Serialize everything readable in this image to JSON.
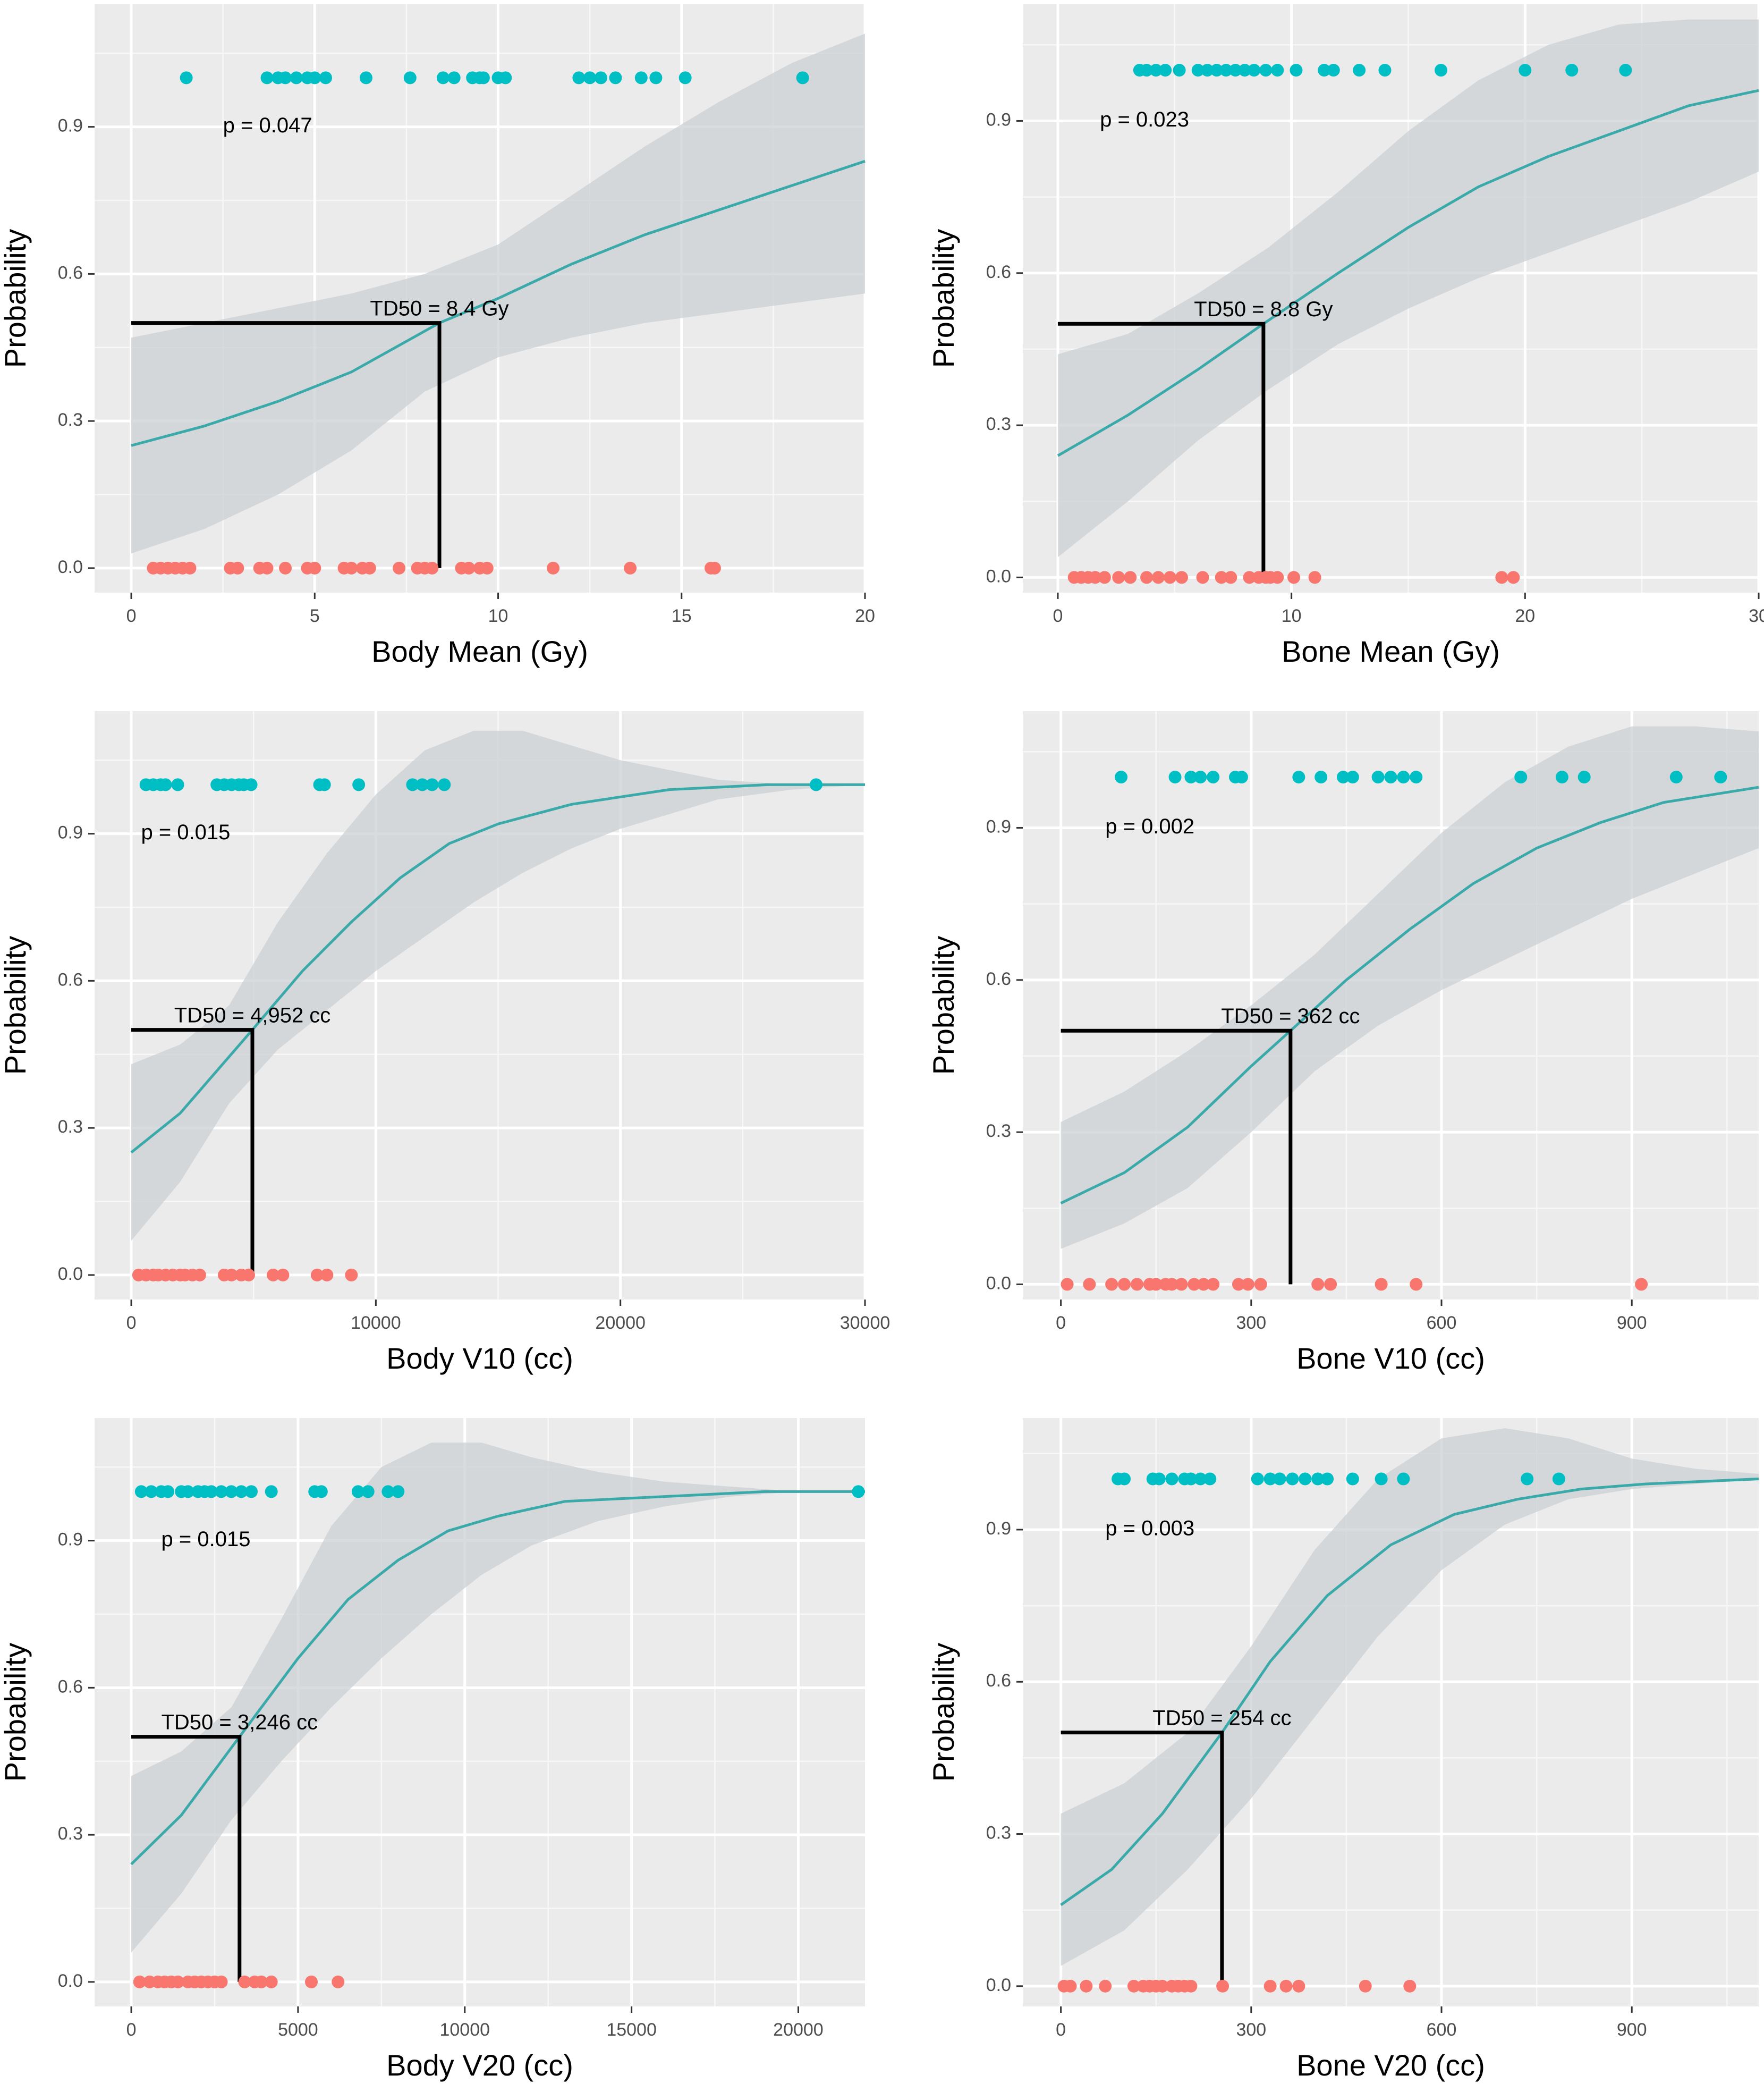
{
  "chart_data": [
    {
      "type": "scatter",
      "title": "",
      "xlabel": "Body Mean (Gy)",
      "ylabel": "Probability",
      "xlim": [
        -1,
        20
      ],
      "ylim": [
        -0.05,
        1.15
      ],
      "xticks": [
        0,
        5,
        10,
        15,
        20
      ],
      "xtick_labels": [
        "0",
        "5",
        "10",
        "15",
        "20"
      ],
      "yticks": [
        0,
        0.3,
        0.6,
        0.9
      ],
      "ytick_labels": [
        "0.0",
        "0.3",
        "0.6",
        "0.9"
      ],
      "p_label": "p = 0.047",
      "p_pos": [
        2.5,
        0.9
      ],
      "td50_value": 8.4,
      "td50_label": "TD50 = 8.4 Gy",
      "fit": {
        "x": [
          0,
          2,
          4,
          6,
          8.4,
          10,
          12,
          14,
          16,
          18,
          20
        ],
        "y": [
          0.25,
          0.29,
          0.34,
          0.4,
          0.5,
          0.55,
          0.62,
          0.68,
          0.73,
          0.78,
          0.83
        ]
      },
      "ci_upper": {
        "x": [
          0,
          2,
          4,
          6,
          8,
          10,
          12,
          14,
          16,
          18,
          20
        ],
        "y": [
          0.47,
          0.5,
          0.53,
          0.56,
          0.6,
          0.66,
          0.76,
          0.86,
          0.95,
          1.03,
          1.09
        ]
      },
      "ci_lower": {
        "x": [
          0,
          2,
          4,
          6,
          8,
          10,
          12,
          14,
          16,
          18,
          20
        ],
        "y": [
          0.03,
          0.08,
          0.15,
          0.24,
          0.36,
          0.43,
          0.47,
          0.5,
          0.52,
          0.54,
          0.56
        ]
      },
      "events": [
        1.5,
        3.7,
        4.0,
        4.2,
        4.5,
        4.8,
        5.0,
        5.3,
        6.4,
        7.6,
        8.5,
        8.8,
        9.3,
        9.5,
        9.6,
        10.0,
        10.2,
        12.2,
        12.5,
        12.8,
        13.2,
        13.9,
        14.3,
        15.1,
        18.3
      ],
      "no_events": [
        0.6,
        0.8,
        1.0,
        1.2,
        1.4,
        1.6,
        2.7,
        2.9,
        3.5,
        3.7,
        4.2,
        4.8,
        5.0,
        5.8,
        6.0,
        6.3,
        6.5,
        7.3,
        7.8,
        8.0,
        8.2,
        9.0,
        9.2,
        9.5,
        9.7,
        11.5,
        13.6,
        15.8,
        15.9
      ]
    },
    {
      "type": "scatter",
      "title": "",
      "xlabel": "Bone Mean (Gy)",
      "ylabel": "Probability",
      "xlim": [
        -1.5,
        30
      ],
      "ylim": [
        -0.03,
        1.13
      ],
      "xticks": [
        0,
        10,
        20,
        30
      ],
      "xtick_labels": [
        "0",
        "10",
        "20",
        "30"
      ],
      "yticks": [
        0,
        0.3,
        0.6,
        0.9
      ],
      "ytick_labels": [
        "0.0",
        "0.3",
        "0.6",
        "0.9"
      ],
      "p_label": "p = 0.023",
      "p_pos": [
        1.8,
        0.9
      ],
      "td50_value": 8.8,
      "td50_label": "TD50 = 8.8 Gy",
      "fit": {
        "x": [
          0,
          3,
          6,
          8.8,
          12,
          15,
          18,
          21,
          24,
          27,
          30
        ],
        "y": [
          0.24,
          0.32,
          0.41,
          0.5,
          0.6,
          0.69,
          0.77,
          0.83,
          0.88,
          0.93,
          0.96
        ]
      },
      "ci_upper": {
        "x": [
          0,
          3,
          6,
          9,
          12,
          15,
          18,
          21,
          24,
          27,
          30
        ],
        "y": [
          0.44,
          0.48,
          0.56,
          0.65,
          0.76,
          0.88,
          0.98,
          1.05,
          1.09,
          1.1,
          1.1
        ]
      },
      "ci_lower": {
        "x": [
          0,
          3,
          6,
          9,
          12,
          15,
          18,
          21,
          24,
          27,
          30
        ],
        "y": [
          0.04,
          0.15,
          0.27,
          0.37,
          0.46,
          0.53,
          0.59,
          0.64,
          0.69,
          0.74,
          0.8
        ]
      },
      "events": [
        3.5,
        3.8,
        4.2,
        4.6,
        5.2,
        6.0,
        6.4,
        6.8,
        7.2,
        7.6,
        8.0,
        8.4,
        8.9,
        9.4,
        10.2,
        11.4,
        11.8,
        12.9,
        14.0,
        16.4,
        20.0,
        22.0,
        24.3
      ],
      "no_events": [
        0.7,
        1.0,
        1.3,
        1.6,
        2.0,
        2.6,
        3.1,
        3.8,
        4.3,
        4.8,
        5.3,
        6.2,
        7.0,
        7.4,
        8.2,
        8.6,
        8.9,
        9.1,
        9.4,
        10.1,
        11.0,
        19.0,
        19.5
      ]
    },
    {
      "type": "scatter",
      "title": "",
      "xlabel": "Body V10 (cc)",
      "ylabel": "Probability",
      "xlim": [
        -1500,
        30000
      ],
      "ylim": [
        -0.05,
        1.15
      ],
      "xticks": [
        0,
        10000,
        20000,
        30000
      ],
      "xtick_labels": [
        "0",
        "10000",
        "20000",
        "30000"
      ],
      "yticks": [
        0,
        0.3,
        0.6,
        0.9
      ],
      "ytick_labels": [
        "0.0",
        "0.3",
        "0.6",
        "0.9"
      ],
      "p_label": "p = 0.015",
      "p_pos": [
        400,
        0.9
      ],
      "td50_value": 4952,
      "td50_label": "TD50 = 4,952 cc",
      "fit": {
        "x": [
          0,
          2000,
          4952,
          7000,
          9000,
          11000,
          13000,
          15000,
          18000,
          22000,
          26000,
          30000
        ],
        "y": [
          0.25,
          0.33,
          0.5,
          0.62,
          0.72,
          0.81,
          0.88,
          0.92,
          0.96,
          0.99,
          1.0,
          1.0
        ]
      },
      "ci_upper": {
        "x": [
          0,
          2000,
          4000,
          6000,
          8000,
          10000,
          12000,
          14000,
          16000,
          18000,
          20000,
          22000,
          24000,
          27000,
          30000
        ],
        "y": [
          0.43,
          0.47,
          0.55,
          0.72,
          0.86,
          0.98,
          1.07,
          1.11,
          1.11,
          1.08,
          1.05,
          1.03,
          1.01,
          1.0,
          1.0
        ]
      },
      "ci_lower": {
        "x": [
          0,
          2000,
          4000,
          6000,
          8000,
          10000,
          12000,
          14000,
          16000,
          18000,
          20000,
          22000,
          24000,
          27000,
          30000
        ],
        "y": [
          0.07,
          0.19,
          0.35,
          0.46,
          0.54,
          0.62,
          0.69,
          0.76,
          0.82,
          0.87,
          0.91,
          0.94,
          0.97,
          0.99,
          1.0
        ]
      },
      "events": [
        600,
        900,
        1200,
        1400,
        1900,
        3500,
        3800,
        4100,
        4400,
        4600,
        4900,
        7700,
        7900,
        9300,
        11500,
        11900,
        12300,
        12800,
        28000
      ],
      "no_events": [
        300,
        600,
        900,
        1100,
        1400,
        1700,
        2000,
        2200,
        2500,
        2800,
        3800,
        4100,
        4500,
        4800,
        5800,
        6200,
        7600,
        8000,
        9000
      ]
    },
    {
      "type": "scatter",
      "title": "",
      "xlabel": "Bone V10 (cc)",
      "ylabel": "Probability",
      "xlim": [
        -60,
        1100
      ],
      "ylim": [
        -0.03,
        1.13
      ],
      "xticks": [
        0,
        300,
        600,
        900
      ],
      "xtick_labels": [
        "0",
        "300",
        "600",
        "900"
      ],
      "yticks": [
        0,
        0.3,
        0.6,
        0.9
      ],
      "ytick_labels": [
        "0.0",
        "0.3",
        "0.6",
        "0.9"
      ],
      "p_label": "p = 0.002",
      "p_pos": [
        70,
        0.9
      ],
      "td50_value": 362,
      "td50_label": "TD50 = 362 cc",
      "fit": {
        "x": [
          0,
          100,
          200,
          300,
          362,
          450,
          550,
          650,
          750,
          850,
          950,
          1100
        ],
        "y": [
          0.16,
          0.22,
          0.31,
          0.43,
          0.5,
          0.6,
          0.7,
          0.79,
          0.86,
          0.91,
          0.95,
          0.98
        ]
      },
      "ci_upper": {
        "x": [
          0,
          100,
          200,
          300,
          400,
          500,
          600,
          700,
          800,
          900,
          1000,
          1100
        ],
        "y": [
          0.32,
          0.38,
          0.46,
          0.55,
          0.65,
          0.77,
          0.89,
          0.99,
          1.06,
          1.1,
          1.1,
          1.09
        ]
      },
      "ci_lower": {
        "x": [
          0,
          100,
          200,
          300,
          400,
          500,
          600,
          700,
          800,
          900,
          1000,
          1100
        ],
        "y": [
          0.07,
          0.12,
          0.19,
          0.3,
          0.42,
          0.51,
          0.58,
          0.64,
          0.7,
          0.76,
          0.81,
          0.86
        ]
      },
      "events": [
        95,
        180,
        205,
        220,
        240,
        275,
        285,
        375,
        410,
        445,
        460,
        500,
        520,
        540,
        560,
        725,
        790,
        825,
        970,
        1040
      ],
      "no_events": [
        10,
        45,
        80,
        100,
        120,
        140,
        150,
        165,
        175,
        190,
        210,
        225,
        240,
        280,
        295,
        315,
        405,
        425,
        505,
        560,
        915
      ]
    },
    {
      "type": "scatter",
      "title": "",
      "xlabel": "Body V20 (cc)",
      "ylabel": "Probability",
      "xlim": [
        -1100,
        22000
      ],
      "ylim": [
        -0.05,
        1.15
      ],
      "xticks": [
        0,
        5000,
        10000,
        15000,
        20000
      ],
      "xtick_labels": [
        "0",
        "5000",
        "10000",
        "15000",
        "20000"
      ],
      "yticks": [
        0,
        0.3,
        0.6,
        0.9
      ],
      "ytick_labels": [
        "0.0",
        "0.3",
        "0.6",
        "0.9"
      ],
      "p_label": "p = 0.015",
      "p_pos": [
        900,
        0.9
      ],
      "td50_value": 3246,
      "td50_label": "TD50 = 3,246 cc",
      "fit": {
        "x": [
          0,
          1500,
          3246,
          5000,
          6500,
          8000,
          9500,
          11000,
          13000,
          16000,
          19000,
          22000
        ],
        "y": [
          0.24,
          0.34,
          0.5,
          0.66,
          0.78,
          0.86,
          0.92,
          0.95,
          0.98,
          0.99,
          1.0,
          1.0
        ]
      },
      "ci_upper": {
        "x": [
          0,
          1500,
          3000,
          4500,
          6000,
          7500,
          9000,
          10500,
          12000,
          14000,
          16000,
          18000,
          20000,
          22000
        ],
        "y": [
          0.42,
          0.47,
          0.56,
          0.74,
          0.93,
          1.05,
          1.1,
          1.1,
          1.07,
          1.04,
          1.02,
          1.01,
          1.0,
          1.0
        ]
      },
      "ci_lower": {
        "x": [
          0,
          1500,
          3000,
          4500,
          6000,
          7500,
          9000,
          10500,
          12000,
          14000,
          16000,
          18000,
          20000,
          22000
        ],
        "y": [
          0.06,
          0.18,
          0.33,
          0.45,
          0.56,
          0.66,
          0.75,
          0.83,
          0.89,
          0.94,
          0.97,
          0.99,
          1.0,
          1.0
        ]
      },
      "events": [
        300,
        600,
        900,
        1100,
        1500,
        1700,
        2000,
        2200,
        2400,
        2700,
        3000,
        3300,
        3600,
        4200,
        5500,
        5700,
        6800,
        7100,
        7700,
        8000,
        21800
      ],
      "no_events": [
        250,
        550,
        800,
        1000,
        1200,
        1400,
        1700,
        1900,
        2100,
        2300,
        2500,
        2700,
        3400,
        3700,
        3900,
        4200,
        5400,
        6200
      ]
    },
    {
      "type": "scatter",
      "title": "",
      "xlabel": "Bone V20 (cc)",
      "ylabel": "Probability",
      "xlim": [
        -60,
        1100
      ],
      "ylim": [
        -0.04,
        1.12
      ],
      "xticks": [
        0,
        300,
        600,
        900
      ],
      "xtick_labels": [
        "0",
        "300",
        "600",
        "900"
      ],
      "yticks": [
        0,
        0.3,
        0.6,
        0.9
      ],
      "ytick_labels": [
        "0.0",
        "0.3",
        "0.6",
        "0.9"
      ],
      "p_label": "p = 0.003",
      "p_pos": [
        70,
        0.9
      ],
      "td50_value": 254,
      "td50_label": "TD50 = 254 cc",
      "fit": {
        "x": [
          0,
          80,
          160,
          254,
          330,
          420,
          520,
          620,
          720,
          820,
          920,
          1100
        ],
        "y": [
          0.16,
          0.23,
          0.34,
          0.5,
          0.64,
          0.77,
          0.87,
          0.93,
          0.96,
          0.98,
          0.99,
          1.0
        ]
      },
      "ci_upper": {
        "x": [
          0,
          100,
          200,
          300,
          400,
          500,
          600,
          700,
          800,
          900,
          1000,
          1100
        ],
        "y": [
          0.34,
          0.4,
          0.5,
          0.67,
          0.86,
          1.0,
          1.08,
          1.1,
          1.08,
          1.04,
          1.02,
          1.01
        ]
      },
      "ci_lower": {
        "x": [
          0,
          100,
          200,
          300,
          400,
          500,
          600,
          700,
          800,
          900,
          1000,
          1100
        ],
        "y": [
          0.04,
          0.11,
          0.23,
          0.37,
          0.53,
          0.69,
          0.82,
          0.91,
          0.96,
          0.98,
          0.99,
          1.0
        ]
      },
      "events": [
        90,
        100,
        145,
        155,
        175,
        195,
        205,
        220,
        235,
        310,
        330,
        345,
        365,
        385,
        405,
        420,
        460,
        505,
        540,
        735,
        785
      ],
      "no_events": [
        5,
        15,
        40,
        70,
        115,
        130,
        140,
        150,
        160,
        175,
        185,
        195,
        205,
        255,
        330,
        355,
        375,
        480,
        550
      ]
    }
  ]
}
